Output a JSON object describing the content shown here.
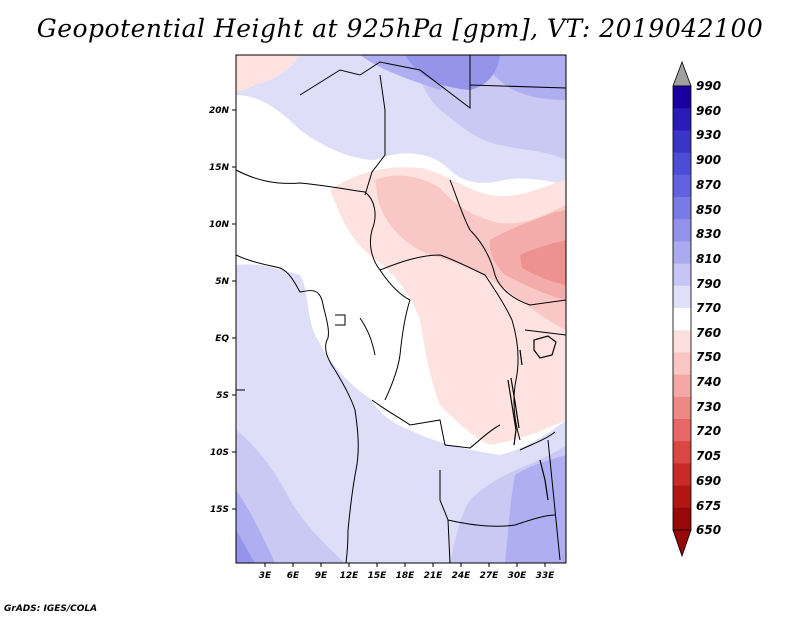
{
  "title": "Geopotential Height at 925hPa [gpm], VT: 2019042100",
  "credit": "GrADS: IGES/COLA",
  "map": {
    "lat_labels": [
      "20N",
      "15N",
      "10N",
      "5N",
      "EQ",
      "5S",
      "10S",
      "15S"
    ],
    "lon_labels": [
      "3E",
      "6E",
      "9E",
      "12E",
      "15E",
      "18E",
      "21E",
      "24E",
      "27E",
      "30E",
      "33E"
    ]
  },
  "colorbar": {
    "labels": [
      "990",
      "960",
      "930",
      "900",
      "870",
      "850",
      "830",
      "810",
      "790",
      "770",
      "760",
      "750",
      "740",
      "730",
      "720",
      "705",
      "690",
      "675",
      "650"
    ],
    "colors": [
      "#1a00a0",
      "#2a1cb6",
      "#3a34c8",
      "#4c4cd6",
      "#6262de",
      "#7a7ae6",
      "#9292ec",
      "#aaaaf0",
      "#c6c6f6",
      "#e0e0fa",
      "#ffffff",
      "#fde0de",
      "#f9c6c4",
      "#f4a8a6",
      "#ee8886",
      "#e66866",
      "#da4644",
      "#c82a28",
      "#b01614",
      "#980808"
    ],
    "top_arrow_color": "#a0a0a0",
    "bottom_arrow_color": "#980808"
  }
}
